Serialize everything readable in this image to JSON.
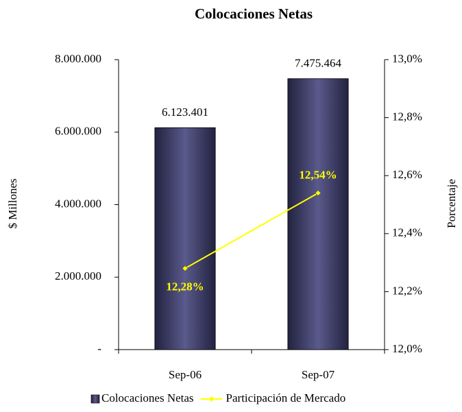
{
  "chart_data": {
    "type": "bar_line",
    "title": "Colocaciones Netas",
    "categories": [
      "Sep-06",
      "Sep-07"
    ],
    "ylabel": "$ Millones",
    "y2label": "Porcentaje",
    "ylim": [
      0,
      8000000
    ],
    "yticks": [
      {
        "value": 0,
        "label": "-"
      },
      {
        "value": 2000000,
        "label": "2.000.000"
      },
      {
        "value": 4000000,
        "label": "4.000.000"
      },
      {
        "value": 6000000,
        "label": "6.000.000"
      },
      {
        "value": 8000000,
        "label": "8.000.000"
      }
    ],
    "y2lim": [
      12,
      13
    ],
    "y2ticks": [
      {
        "value": 12,
        "label": "12,0%"
      },
      {
        "value": 12.2,
        "label": "12,2%"
      },
      {
        "value": 12.4,
        "label": "12,4%"
      },
      {
        "value": 12.6,
        "label": "12,6%"
      },
      {
        "value": 12.8,
        "label": "12,8%"
      },
      {
        "value": 13,
        "label": "13,0%"
      }
    ],
    "series": [
      {
        "name": "Colocaciones Netas",
        "type": "bar",
        "color": "#5a5a8c",
        "values": [
          6123401,
          7475464
        ],
        "value_labels": [
          "6.123.401",
          "7.475.464"
        ]
      },
      {
        "name": "Participación de Mercado",
        "type": "line",
        "axis": "y2",
        "color": "#ffff00",
        "values": [
          12.28,
          12.54
        ],
        "value_labels": [
          "12,28%",
          "12,54%"
        ]
      }
    ],
    "legend": "bottom"
  }
}
